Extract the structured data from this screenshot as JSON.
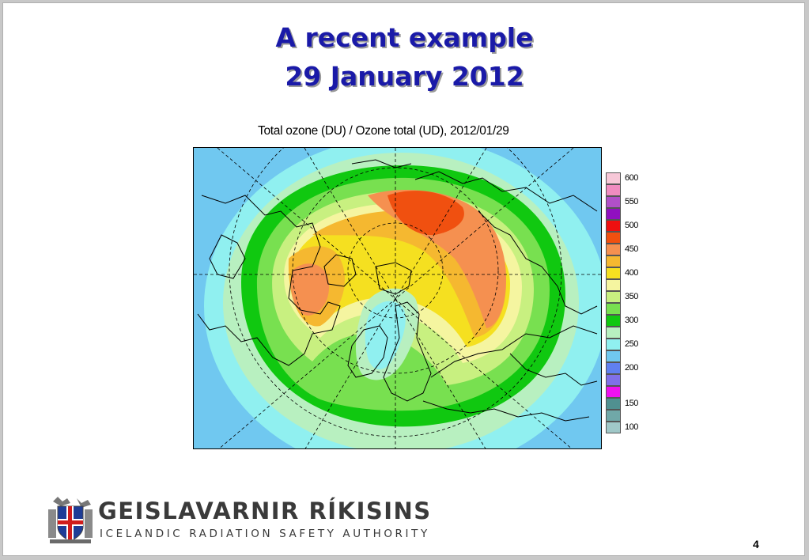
{
  "slide": {
    "title_line1": "A recent example",
    "title_line2": "29 January 2012",
    "page_number": "4"
  },
  "map": {
    "title": "Total ozone (DU) / Ozone total (UD), 2012/01/29",
    "legend": [
      {
        "label": "600",
        "color": "#f7c8d8"
      },
      {
        "label": "",
        "color": "#f08cc0"
      },
      {
        "label": "550",
        "color": "#b050c8"
      },
      {
        "label": "",
        "color": "#9010c0"
      },
      {
        "label": "500",
        "color": "#ee1010"
      },
      {
        "label": "",
        "color": "#f05010"
      },
      {
        "label": "450",
        "color": "#f59050"
      },
      {
        "label": "",
        "color": "#f5b830"
      },
      {
        "label": "400",
        "color": "#f5e020"
      },
      {
        "label": "",
        "color": "#f5f5a0"
      },
      {
        "label": "350",
        "color": "#c8f080"
      },
      {
        "label": "",
        "color": "#78e050"
      },
      {
        "label": "300",
        "color": "#10c810"
      },
      {
        "label": "",
        "color": "#b8f0c0"
      },
      {
        "label": "250",
        "color": "#90f0f0"
      },
      {
        "label": "",
        "color": "#70c8f0"
      },
      {
        "label": "200",
        "color": "#6080f0"
      },
      {
        "label": "",
        "color": "#8070e8"
      },
      {
        "label": "",
        "color": "#f010f0"
      },
      {
        "label": "150",
        "color": "#509090"
      },
      {
        "label": "",
        "color": "#70a8a8"
      },
      {
        "label": "100",
        "color": "#a0c8c8"
      }
    ]
  },
  "footer": {
    "org_name": "GEISLAVARNIR RÍKISINS",
    "org_subtitle": "ICELANDIC RADIATION SAFETY AUTHORITY"
  }
}
